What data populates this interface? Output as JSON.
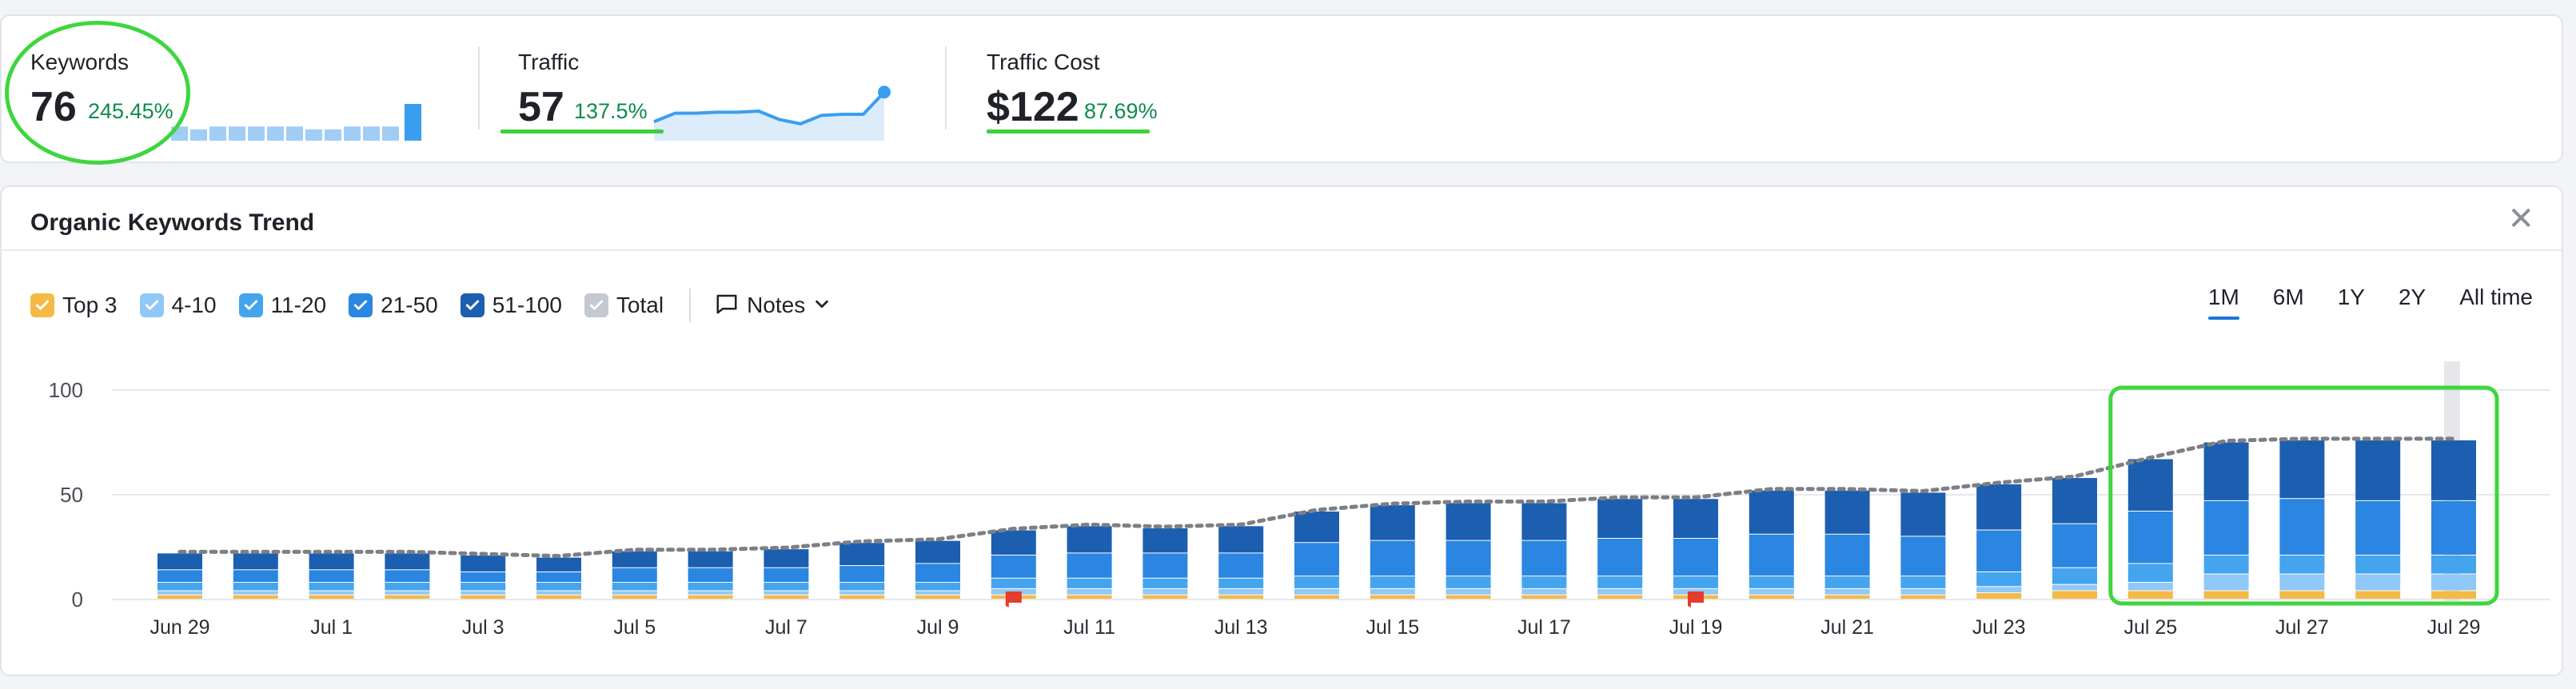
{
  "summary": {
    "keywords": {
      "label": "Keywords",
      "value": "76",
      "change": "245.45%",
      "spark": [
        5,
        4,
        5,
        5,
        5,
        5,
        5,
        4,
        4,
        5,
        5,
        5,
        13
      ]
    },
    "traffic": {
      "label": "Traffic",
      "value": "57",
      "change": "137.5%",
      "spark": [
        18,
        26,
        26,
        27,
        27,
        28,
        20,
        16,
        24,
        25,
        25,
        46
      ]
    },
    "traffic_cost": {
      "label": "Traffic Cost",
      "value": "$122",
      "change": "87.69%"
    }
  },
  "trend": {
    "title": "Organic Keywords Trend",
    "close_icon": "close-icon",
    "legend": [
      {
        "label": "Top 3",
        "color": "#f5b945",
        "checked": true
      },
      {
        "label": "4-10",
        "color": "#90c8f8",
        "checked": true
      },
      {
        "label": "11-20",
        "color": "#44a4ee",
        "checked": true
      },
      {
        "label": "21-50",
        "color": "#2a86e0",
        "checked": true
      },
      {
        "label": "51-100",
        "color": "#1c5fb0",
        "checked": true
      },
      {
        "label": "Total",
        "color": "#c4c8d0",
        "checked": true
      }
    ],
    "notes_label": "Notes",
    "periods": [
      {
        "label": "1M",
        "active": true
      },
      {
        "label": "6M",
        "active": false
      },
      {
        "label": "1Y",
        "active": false
      },
      {
        "label": "2Y",
        "active": false
      },
      {
        "label": "All time",
        "active": false
      }
    ]
  },
  "colors": {
    "highlight": "#3ed63e",
    "grid": "#e6e8ee",
    "total_line": "#7d7f85",
    "note_flag": "#e43c2f"
  },
  "chart_data": {
    "type": "bar",
    "stacked": true,
    "categories": [
      "Jun 29",
      "Jun 30",
      "Jul 1",
      "Jul 2",
      "Jul 3",
      "Jul 4",
      "Jul 5",
      "Jul 6",
      "Jul 7",
      "Jul 8",
      "Jul 9",
      "Jul 10",
      "Jul 11",
      "Jul 12",
      "Jul 13",
      "Jul 14",
      "Jul 15",
      "Jul 16",
      "Jul 17",
      "Jul 18",
      "Jul 19",
      "Jul 20",
      "Jul 21",
      "Jul 22",
      "Jul 23",
      "Jul 24",
      "Jul 25",
      "Jul 26",
      "Jul 27",
      "Jul 28",
      "Jul 29"
    ],
    "tick_labels": [
      "Jun 29",
      "Jul 1",
      "Jul 3",
      "Jul 5",
      "Jul 7",
      "Jul 9",
      "Jul 11",
      "Jul 13",
      "Jul 15",
      "Jul 17",
      "Jul 19",
      "Jul 21",
      "Jul 23",
      "Jul 25",
      "Jul 27",
      "Jul 29"
    ],
    "series": [
      {
        "name": "Top 3",
        "values": [
          2,
          2,
          2,
          2,
          2,
          2,
          2,
          2,
          2,
          2,
          2,
          2,
          2,
          2,
          2,
          2,
          2,
          2,
          2,
          2,
          2,
          2,
          2,
          2,
          3,
          4,
          4,
          4,
          4,
          4,
          4
        ]
      },
      {
        "name": "4-10",
        "values": [
          2,
          2,
          2,
          2,
          2,
          2,
          2,
          2,
          2,
          2,
          2,
          3,
          3,
          3,
          3,
          3,
          3,
          3,
          3,
          3,
          3,
          3,
          3,
          3,
          3,
          3,
          4,
          8,
          8,
          8,
          8
        ]
      },
      {
        "name": "11-20",
        "values": [
          4,
          4,
          4,
          4,
          4,
          4,
          4,
          4,
          4,
          4,
          4,
          5,
          5,
          5,
          5,
          6,
          6,
          6,
          6,
          6,
          6,
          6,
          6,
          6,
          7,
          8,
          9,
          9,
          9,
          9,
          9
        ]
      },
      {
        "name": "21-50",
        "values": [
          6,
          6,
          6,
          6,
          5,
          5,
          7,
          7,
          7,
          8,
          9,
          11,
          12,
          12,
          12,
          16,
          17,
          17,
          17,
          18,
          18,
          20,
          20,
          19,
          20,
          21,
          25,
          26,
          27,
          26,
          26
        ]
      },
      {
        "name": "51-100",
        "values": [
          8,
          8,
          8,
          8,
          8,
          7,
          8,
          8,
          9,
          11,
          11,
          12,
          13,
          12,
          13,
          15,
          17,
          18,
          18,
          19,
          19,
          21,
          21,
          21,
          22,
          22,
          25,
          28,
          28,
          29,
          29
        ]
      }
    ],
    "total": [
      22,
      22,
      22,
      22,
      21,
      20,
      23,
      23,
      24,
      27,
      28,
      33,
      35,
      34,
      35,
      42,
      45,
      46,
      46,
      48,
      48,
      52,
      52,
      51,
      55,
      58,
      67,
      75,
      76,
      76,
      76
    ],
    "note_flags": [
      "Jul 10",
      "Jul 19"
    ],
    "highlighted_range": [
      "Jul 25",
      "Jul 29"
    ],
    "ylim": [
      0,
      100
    ],
    "yticks": [
      0,
      50,
      100
    ],
    "grid": true,
    "legend_position": "top-left"
  }
}
